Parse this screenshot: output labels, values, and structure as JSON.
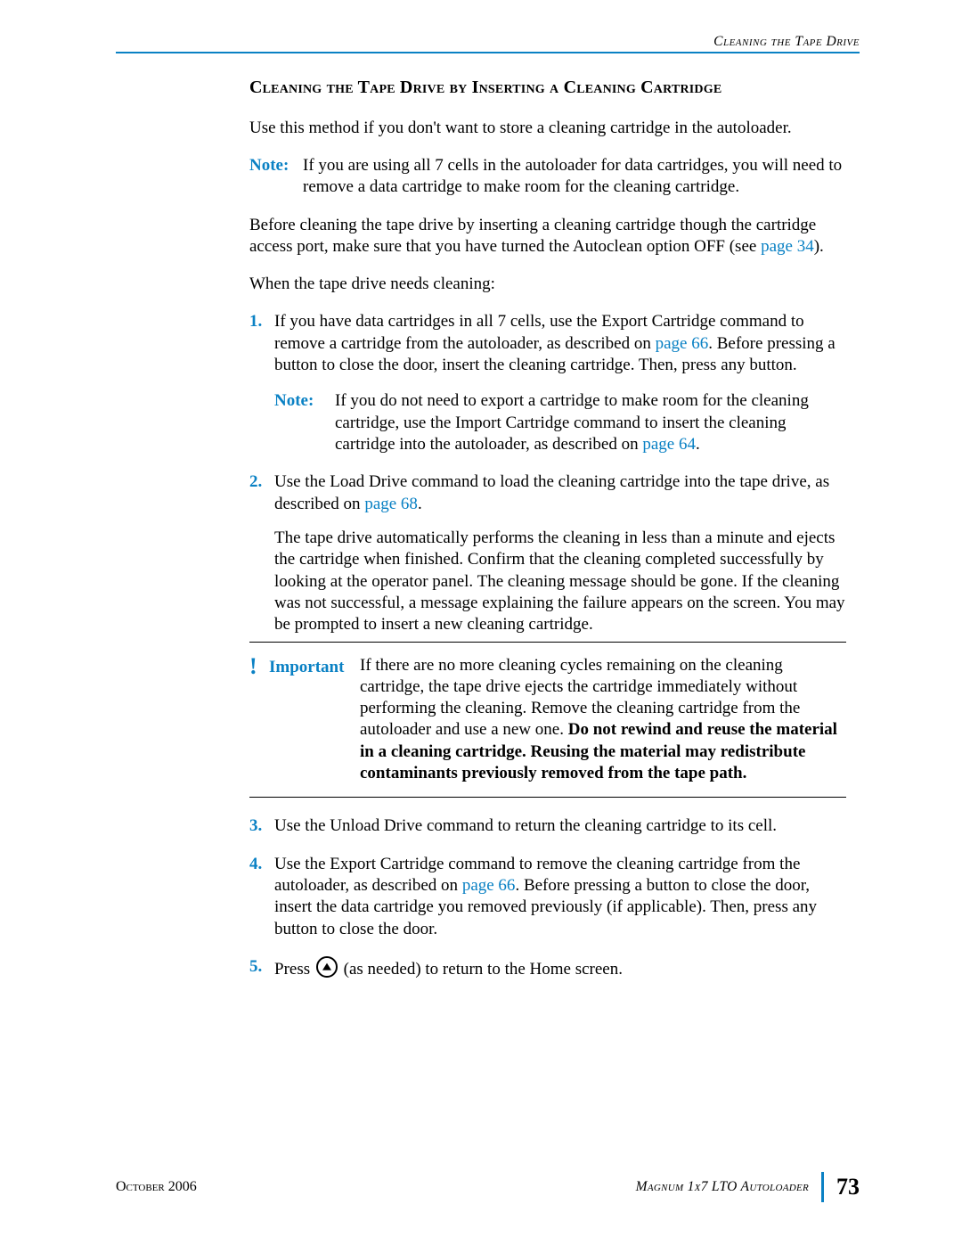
{
  "colors": {
    "accent": "#0a81c4",
    "text": "#000000",
    "background": "#ffffff"
  },
  "typography": {
    "body_fontsize_pt": 14,
    "heading_fontsize_pt": 15,
    "font_family": "Palatino"
  },
  "header": {
    "running_head": "Cleaning the Tape Drive"
  },
  "section": {
    "heading": "Cleaning the Tape Drive by Inserting a Cleaning Cartridge",
    "intro": "Use this method if you don't want to store a cleaning cartridge in the autoloader.",
    "note1_label": "Note:",
    "note1_body": "If you are using all 7 cells in the autoloader for data cartridges, you will need to remove a data cartridge to make room for the cleaning cartridge.",
    "p_before_a": "Before cleaning the tape drive by inserting a cleaning cartridge though the cartridge access port, make sure that you have turned the Autoclean option OFF (see ",
    "p_before_link": "page 34",
    "p_before_b": ").",
    "lead_in": "When the tape drive needs cleaning:",
    "steps": {
      "s1_a": "If you have data cartridges in all 7 cells, use the Export Cartridge command to remove a cartridge from the autoloader, as described on ",
      "s1_link": "page 66",
      "s1_b": ". Before pressing a button to close the door, insert the cleaning cartridge. Then, press any button.",
      "s1_note_label": "Note:",
      "s1_note_a": "If you do not need to export a cartridge to make room for the cleaning cartridge, use the Import Cartridge command to insert the cleaning cartridge into the autoloader, as described on ",
      "s1_note_link": "page 64",
      "s1_note_b": ".",
      "s2_a": "Use the Load Drive command to load the cleaning cartridge into the tape drive, as described on ",
      "s2_link": "page 68",
      "s2_b": ".",
      "s2_para2": "The tape drive automatically performs the cleaning in less than a minute and ejects the cartridge when finished. Confirm that the cleaning completed successfully by looking at the operator panel. The cleaning message should be gone. If the cleaning was not successful, a message explaining the failure appears on the screen. You may be prompted to insert a new cleaning cartridge.",
      "s3": "Use the Unload Drive command to return the cleaning cartridge to its cell.",
      "s4_a": "Use the Export Cartridge command to remove the cleaning cartridge from the autoloader, as described on ",
      "s4_link": "page 66",
      "s4_b": ". Before pressing a button to close the door, insert the data cartridge you removed previously (if applicable). Then, press any button to close the door.",
      "s5_a": "Press ",
      "s5_b": " (as needed) to return to the Home screen."
    },
    "important": {
      "mark": "!",
      "label": "Important",
      "body_a": "If there are no more cleaning cycles remaining on the cleaning cartridge, the tape drive ejects the cartridge immediately without performing the cleaning. Remove the cleaning cartridge from the autoloader and use a new one. ",
      "body_bold": "Do not rewind and reuse the material in a cleaning cartridge. Reusing the material may redistribute contaminants previously removed from the tape path."
    }
  },
  "footer": {
    "date": "October 2006",
    "title": "Magnum 1x7 LTO Autoloader",
    "page": "73"
  }
}
